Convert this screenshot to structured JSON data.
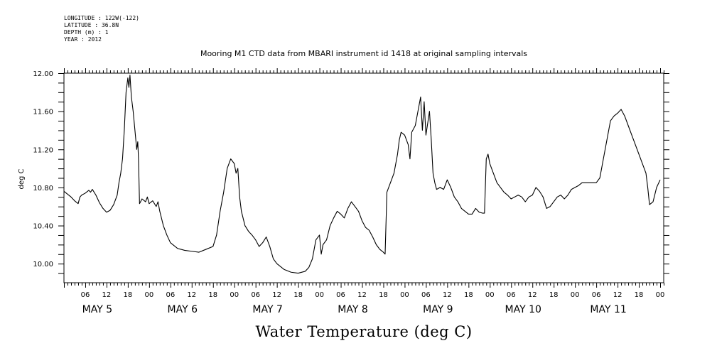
{
  "meta": {
    "longitude": "LONGITUDE : 122W(-122)",
    "latitude": "LATITUDE : 36.8N",
    "depth": "DEPTH (m) : 1",
    "year": "YEAR : 2012"
  },
  "chart_data": {
    "type": "line",
    "title": "Mooring M1 CTD data from MBARI instrument id 1418 at original sampling intervals",
    "xlabel": "Water Temperature (deg C)",
    "ylabel": "deg C",
    "ylim": [
      9.8,
      12.0
    ],
    "xlim_hours": [
      0,
      169
    ],
    "yticks": [
      10.0,
      10.4,
      10.8,
      11.2,
      11.6,
      12.0
    ],
    "ytick_labels": [
      "10.00",
      "10.40",
      "10.80",
      "11.20",
      "11.60",
      "12.00"
    ],
    "hour_ticks": [
      "06",
      "12",
      "18",
      "00",
      "06",
      "12",
      "18",
      "00",
      "06",
      "12",
      "18",
      "00",
      "06",
      "12",
      "18",
      "00",
      "06",
      "12",
      "18",
      "00",
      "06",
      "12",
      "18",
      "00",
      "06",
      "12",
      "18",
      "00"
    ],
    "day_labels": [
      "MAY   5",
      "MAY   6",
      "MAY   7",
      "MAY   8",
      "MAY   9",
      "MAY 10",
      "MAY 11"
    ],
    "series": [
      {
        "points": [
          [
            0,
            10.76
          ],
          [
            1,
            10.73
          ],
          [
            2,
            10.7
          ],
          [
            3,
            10.66
          ],
          [
            4,
            10.63
          ],
          [
            4.5,
            10.7
          ],
          [
            5,
            10.72
          ],
          [
            6,
            10.74
          ],
          [
            7,
            10.77
          ],
          [
            7.5,
            10.75
          ],
          [
            8,
            10.78
          ],
          [
            9,
            10.72
          ],
          [
            10,
            10.64
          ],
          [
            11,
            10.58
          ],
          [
            12,
            10.54
          ],
          [
            13,
            10.56
          ],
          [
            14,
            10.62
          ],
          [
            15,
            10.72
          ],
          [
            15.5,
            10.85
          ],
          [
            16,
            10.95
          ],
          [
            16.5,
            11.1
          ],
          [
            17,
            11.4
          ],
          [
            17.5,
            11.8
          ],
          [
            18,
            11.95
          ],
          [
            18.3,
            11.85
          ],
          [
            18.6,
            11.98
          ],
          [
            19,
            11.75
          ],
          [
            19.5,
            11.6
          ],
          [
            20,
            11.4
          ],
          [
            20.5,
            11.2
          ],
          [
            20.8,
            11.28
          ],
          [
            21,
            11.1
          ],
          [
            21.3,
            10.63
          ],
          [
            22,
            10.68
          ],
          [
            23,
            10.65
          ],
          [
            23.5,
            10.7
          ],
          [
            24,
            10.63
          ],
          [
            25,
            10.66
          ],
          [
            26,
            10.6
          ],
          [
            26.5,
            10.65
          ],
          [
            27,
            10.55
          ],
          [
            28,
            10.4
          ],
          [
            29,
            10.3
          ],
          [
            30,
            10.22
          ],
          [
            32,
            10.16
          ],
          [
            34,
            10.14
          ],
          [
            36,
            10.13
          ],
          [
            38,
            10.12
          ],
          [
            40,
            10.15
          ],
          [
            42,
            10.18
          ],
          [
            43,
            10.3
          ],
          [
            44,
            10.55
          ],
          [
            45,
            10.75
          ],
          [
            46,
            11.0
          ],
          [
            47,
            11.1
          ],
          [
            48,
            11.05
          ],
          [
            48.5,
            10.95
          ],
          [
            49,
            11.0
          ],
          [
            49.5,
            10.7
          ],
          [
            50,
            10.55
          ],
          [
            51,
            10.4
          ],
          [
            52,
            10.34
          ],
          [
            53,
            10.3
          ],
          [
            54,
            10.25
          ],
          [
            55,
            10.18
          ],
          [
            56,
            10.22
          ],
          [
            57,
            10.28
          ],
          [
            58,
            10.18
          ],
          [
            59,
            10.05
          ],
          [
            60,
            10.0
          ],
          [
            62,
            9.94
          ],
          [
            64,
            9.91
          ],
          [
            66,
            9.9
          ],
          [
            68,
            9.92
          ],
          [
            69,
            9.96
          ],
          [
            70,
            10.05
          ],
          [
            71,
            10.25
          ],
          [
            72,
            10.3
          ],
          [
            72.5,
            10.1
          ],
          [
            73,
            10.2
          ],
          [
            74,
            10.25
          ],
          [
            75,
            10.4
          ],
          [
            76,
            10.48
          ],
          [
            77,
            10.55
          ],
          [
            78,
            10.52
          ],
          [
            79,
            10.48
          ],
          [
            80,
            10.58
          ],
          [
            81,
            10.65
          ],
          [
            82,
            10.6
          ],
          [
            83,
            10.55
          ],
          [
            84,
            10.45
          ],
          [
            85,
            10.38
          ],
          [
            86,
            10.35
          ],
          [
            87,
            10.28
          ],
          [
            88,
            10.2
          ],
          [
            89,
            10.15
          ],
          [
            90,
            10.12
          ],
          [
            90.5,
            10.1
          ],
          [
            91,
            10.75
          ],
          [
            92,
            10.85
          ],
          [
            93,
            10.95
          ],
          [
            94,
            11.15
          ],
          [
            94.5,
            11.3
          ],
          [
            95,
            11.38
          ],
          [
            96,
            11.35
          ],
          [
            97,
            11.25
          ],
          [
            97.5,
            11.1
          ],
          [
            98,
            11.38
          ],
          [
            99,
            11.45
          ],
          [
            100,
            11.65
          ],
          [
            100.5,
            11.75
          ],
          [
            101,
            11.4
          ],
          [
            101.5,
            11.7
          ],
          [
            102,
            11.35
          ],
          [
            103,
            11.6
          ],
          [
            103.5,
            11.3
          ],
          [
            104,
            10.95
          ],
          [
            104.5,
            10.85
          ],
          [
            105,
            10.78
          ],
          [
            106,
            10.8
          ],
          [
            107,
            10.78
          ],
          [
            108,
            10.88
          ],
          [
            109,
            10.8
          ],
          [
            110,
            10.7
          ],
          [
            111,
            10.65
          ],
          [
            112,
            10.58
          ],
          [
            113,
            10.55
          ],
          [
            114,
            10.52
          ],
          [
            115,
            10.52
          ],
          [
            116,
            10.58
          ],
          [
            117,
            10.54
          ],
          [
            118,
            10.53
          ],
          [
            118.5,
            10.53
          ],
          [
            119,
            11.1
          ],
          [
            119.5,
            11.15
          ],
          [
            120,
            11.05
          ],
          [
            121,
            10.95
          ],
          [
            122,
            10.85
          ],
          [
            123,
            10.8
          ],
          [
            124,
            10.75
          ],
          [
            125,
            10.72
          ],
          [
            126,
            10.68
          ],
          [
            127,
            10.7
          ],
          [
            128,
            10.72
          ],
          [
            129,
            10.7
          ],
          [
            130,
            10.65
          ],
          [
            131,
            10.7
          ],
          [
            132,
            10.72
          ],
          [
            133,
            10.8
          ],
          [
            134,
            10.76
          ],
          [
            135,
            10.7
          ],
          [
            136,
            10.58
          ],
          [
            137,
            10.6
          ],
          [
            138,
            10.65
          ],
          [
            139,
            10.7
          ],
          [
            140,
            10.72
          ],
          [
            141,
            10.68
          ],
          [
            142,
            10.72
          ],
          [
            143,
            10.78
          ],
          [
            144,
            10.8
          ],
          [
            145,
            10.82
          ],
          [
            146,
            10.85
          ],
          [
            148,
            10.85
          ],
          [
            150,
            10.85
          ],
          [
            151,
            10.9
          ],
          [
            152,
            11.1
          ],
          [
            153,
            11.3
          ],
          [
            154,
            11.5
          ],
          [
            155,
            11.55
          ],
          [
            156,
            11.58
          ],
          [
            157,
            11.62
          ],
          [
            158,
            11.55
          ],
          [
            159,
            11.45
          ],
          [
            160,
            11.35
          ],
          [
            161,
            11.25
          ],
          [
            162,
            11.15
          ],
          [
            163,
            11.05
          ],
          [
            164,
            10.95
          ],
          [
            164.5,
            10.8
          ],
          [
            165,
            10.62
          ],
          [
            166,
            10.65
          ],
          [
            167,
            10.8
          ],
          [
            168,
            10.88
          ]
        ]
      }
    ]
  }
}
